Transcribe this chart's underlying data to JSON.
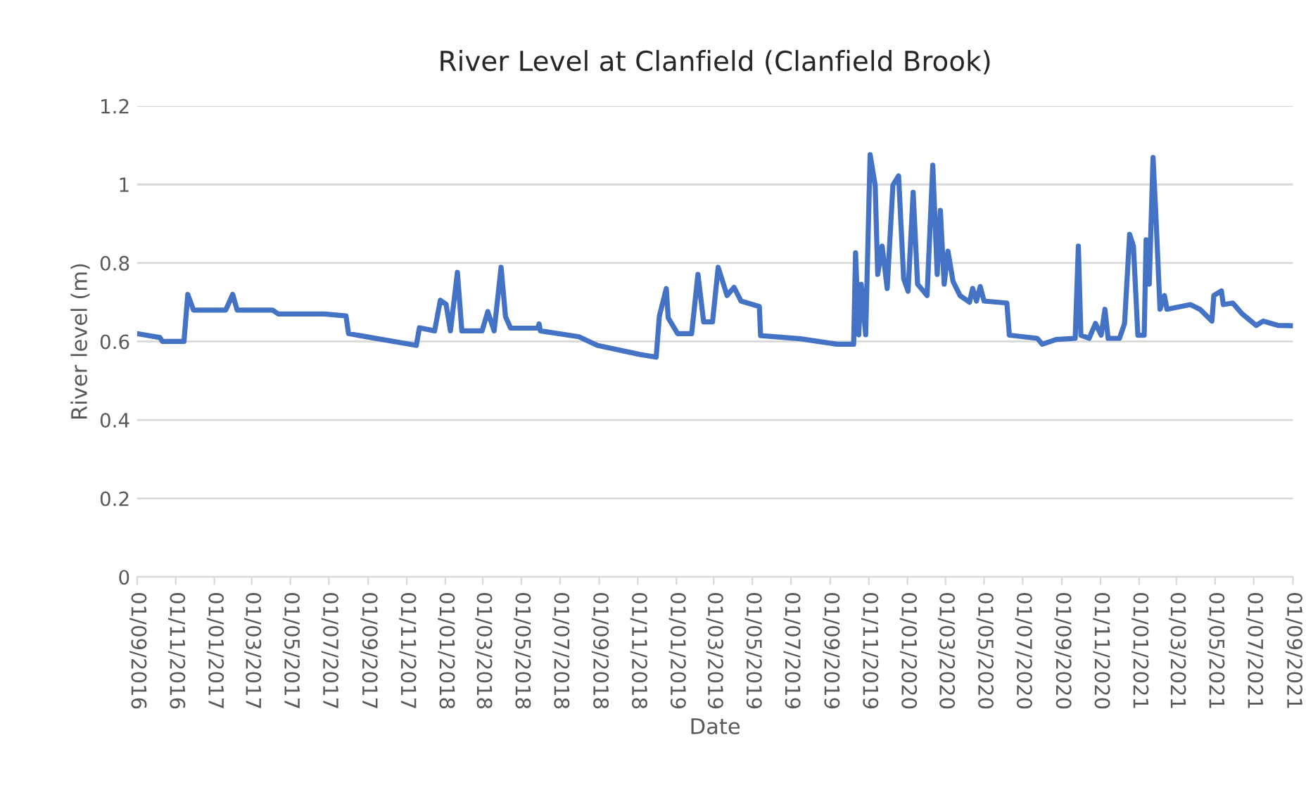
{
  "chart_data": {
    "type": "line",
    "title": "River Level at Clanfield (Clanfield Brook)",
    "xlabel": "Date",
    "ylabel": "River level (m)",
    "x": [
      "2016-09-01",
      "2016-10-07",
      "2016-10-11",
      "2016-11-14",
      "2016-11-20",
      "2016-11-29",
      "2017-01-19",
      "2017-01-30",
      "2017-02-06",
      "2017-04-03",
      "2017-04-12",
      "2017-06-24",
      "2017-07-28",
      "2017-08-01",
      "2017-11-16",
      "2017-11-21",
      "2017-12-15",
      "2017-12-24",
      "2018-01-02",
      "2018-01-09",
      "2018-01-20",
      "2018-01-27",
      "2018-02-28",
      "2018-03-09",
      "2018-03-19",
      "2018-03-30",
      "2018-04-06",
      "2018-04-14",
      "2018-05-27",
      "2018-05-29",
      "2018-05-31",
      "2018-07-31",
      "2018-08-29",
      "2018-11-04",
      "2018-11-30",
      "2018-12-05",
      "2018-12-16",
      "2018-12-19",
      "2019-01-03",
      "2019-01-25",
      "2019-02-04",
      "2019-02-13",
      "2019-02-27",
      "2019-03-08",
      "2019-03-22",
      "2019-04-02",
      "2019-04-13",
      "2019-05-12",
      "2019-05-14",
      "2019-07-16",
      "2019-09-12",
      "2019-10-08",
      "2019-10-11",
      "2019-10-16",
      "2019-10-20",
      "2019-10-27",
      "2019-11-03",
      "2019-11-11",
      "2019-11-15",
      "2019-11-22",
      "2019-11-30",
      "2019-12-09",
      "2019-12-18",
      "2019-12-26",
      "2020-01-02",
      "2020-01-10",
      "2020-01-17",
      "2020-02-01",
      "2020-02-10",
      "2020-02-17",
      "2020-02-22",
      "2020-02-28",
      "2020-03-05",
      "2020-03-13",
      "2020-03-24",
      "2020-04-08",
      "2020-04-13",
      "2020-04-19",
      "2020-04-25",
      "2020-05-01",
      "2020-06-06",
      "2020-06-10",
      "2020-07-24",
      "2020-08-01",
      "2020-08-23",
      "2020-09-22",
      "2020-09-27",
      "2020-10-01",
      "2020-10-14",
      "2020-10-24",
      "2020-11-02",
      "2020-11-08",
      "2020-11-13",
      "2020-12-01",
      "2020-12-09",
      "2020-12-17",
      "2020-12-23",
      "2020-12-30",
      "2021-01-09",
      "2021-01-12",
      "2021-01-17",
      "2021-01-23",
      "2021-01-28",
      "2021-02-03",
      "2021-02-10",
      "2021-02-14",
      "2021-03-23",
      "2021-04-07",
      "2021-04-26",
      "2021-04-29",
      "2021-05-11",
      "2021-05-14",
      "2021-05-29",
      "2021-06-13",
      "2021-07-05",
      "2021-07-16",
      "2021-08-08",
      "2021-09-01"
    ],
    "series": [
      {
        "color": "#4472c4",
        "values": [
          0.62,
          0.61,
          0.6,
          0.6,
          0.72,
          0.68,
          0.68,
          0.72,
          0.68,
          0.68,
          0.67,
          0.67,
          0.665,
          0.62,
          0.59,
          0.635,
          0.627,
          0.705,
          0.695,
          0.627,
          0.776,
          0.627,
          0.627,
          0.676,
          0.627,
          0.789,
          0.663,
          0.634,
          0.634,
          0.645,
          0.627,
          0.612,
          0.59,
          0.567,
          0.56,
          0.664,
          0.735,
          0.66,
          0.62,
          0.62,
          0.771,
          0.65,
          0.65,
          0.789,
          0.717,
          0.738,
          0.703,
          0.689,
          0.615,
          0.607,
          0.593,
          0.593,
          0.826,
          0.617,
          0.746,
          0.617,
          1.076,
          0.998,
          0.771,
          0.843,
          0.735,
          0.998,
          1.022,
          0.76,
          0.728,
          0.98,
          0.746,
          0.717,
          1.049,
          0.771,
          0.934,
          0.746,
          0.83,
          0.753,
          0.717,
          0.7,
          0.735,
          0.703,
          0.74,
          0.703,
          0.698,
          0.616,
          0.608,
          0.593,
          0.605,
          0.608,
          0.843,
          0.616,
          0.608,
          0.646,
          0.616,
          0.682,
          0.608,
          0.608,
          0.646,
          0.873,
          0.843,
          0.616,
          0.616,
          0.859,
          0.746,
          1.069,
          0.903,
          0.682,
          0.717,
          0.682,
          0.694,
          0.682,
          0.652,
          0.717,
          0.729,
          0.694,
          0.698,
          0.67,
          0.641,
          0.652,
          0.641,
          0.64
        ]
      }
    ],
    "xlim": [
      "2016-09-01",
      "2021-09-01"
    ],
    "xticks": [
      {
        "value": "2016-09-01",
        "label": "01/09/2016"
      },
      {
        "value": "2016-11-01",
        "label": "01/11/2016"
      },
      {
        "value": "2017-01-01",
        "label": "01/01/2017"
      },
      {
        "value": "2017-03-01",
        "label": "01/03/2017"
      },
      {
        "value": "2017-05-01",
        "label": "01/05/2017"
      },
      {
        "value": "2017-07-01",
        "label": "01/07/2017"
      },
      {
        "value": "2017-09-01",
        "label": "01/09/2017"
      },
      {
        "value": "2017-11-01",
        "label": "01/11/2017"
      },
      {
        "value": "2018-01-01",
        "label": "01/01/2018"
      },
      {
        "value": "2018-03-01",
        "label": "01/03/2018"
      },
      {
        "value": "2018-05-01",
        "label": "01/05/2018"
      },
      {
        "value": "2018-07-01",
        "label": "01/07/2018"
      },
      {
        "value": "2018-09-01",
        "label": "01/09/2018"
      },
      {
        "value": "2018-11-01",
        "label": "01/11/2018"
      },
      {
        "value": "2019-01-01",
        "label": "01/01/2019"
      },
      {
        "value": "2019-03-01",
        "label": "01/03/2019"
      },
      {
        "value": "2019-05-01",
        "label": "01/05/2019"
      },
      {
        "value": "2019-07-01",
        "label": "01/07/2019"
      },
      {
        "value": "2019-09-01",
        "label": "01/09/2019"
      },
      {
        "value": "2019-11-01",
        "label": "01/11/2019"
      },
      {
        "value": "2020-01-01",
        "label": "01/01/2020"
      },
      {
        "value": "2020-03-01",
        "label": "01/03/2020"
      },
      {
        "value": "2020-05-01",
        "label": "01/05/2020"
      },
      {
        "value": "2020-07-01",
        "label": "01/07/2020"
      },
      {
        "value": "2020-09-01",
        "label": "01/09/2020"
      },
      {
        "value": "2020-11-01",
        "label": "01/11/2020"
      },
      {
        "value": "2021-01-01",
        "label": "01/01/2021"
      },
      {
        "value": "2021-03-01",
        "label": "01/03/2021"
      },
      {
        "value": "2021-05-01",
        "label": "01/05/2021"
      },
      {
        "value": "2021-07-01",
        "label": "01/07/2021"
      },
      {
        "value": "2021-09-01",
        "label": "01/09/2021"
      }
    ],
    "ylim": [
      0,
      1.2
    ],
    "yticks": [
      0,
      0.2,
      0.4,
      0.6,
      0.8,
      1,
      1.2
    ],
    "grid": "y",
    "legend": false,
    "marker": "none",
    "line_style": "solid"
  }
}
